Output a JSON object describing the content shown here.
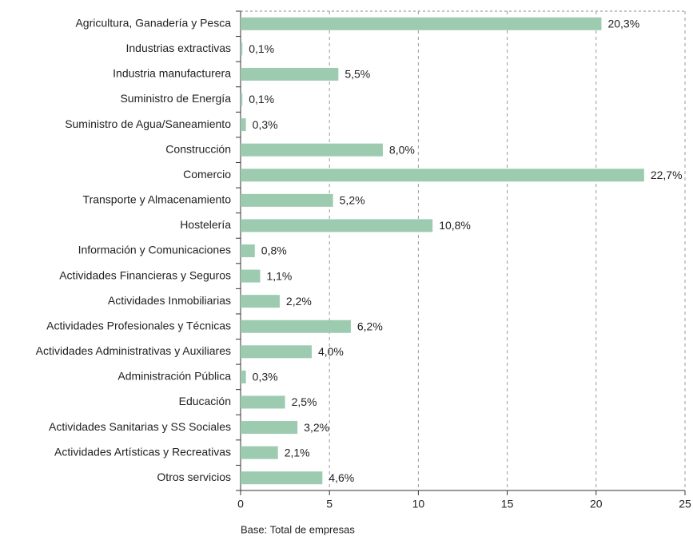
{
  "chart_data": {
    "type": "bar",
    "orientation": "horizontal",
    "categories": [
      "Agricultura, Ganadería y Pesca",
      "Industrias extractivas",
      "Industria manufacturera",
      "Suministro de Energía",
      "Suministro de Agua/Saneamiento",
      "Construcción",
      "Comercio",
      "Transporte y Almacenamiento",
      "Hostelería",
      "Información y Comunicaciones",
      "Actividades Financieras y Seguros",
      "Actividades Inmobiliarias",
      "Actividades Profesionales y Técnicas",
      "Actividades Administrativas y Auxiliares",
      "Administración Pública",
      "Educación",
      "Actividades Sanitarias y SS Sociales",
      "Actividades Artísticas y Recreativas",
      "Otros servicios"
    ],
    "values": [
      20.3,
      0.1,
      5.5,
      0.1,
      0.3,
      8.0,
      22.7,
      5.2,
      10.8,
      0.8,
      1.1,
      2.2,
      6.2,
      4.0,
      0.3,
      2.5,
      3.2,
      2.1,
      4.6
    ],
    "value_labels": [
      "20,3%",
      "0,1%",
      "5,5%",
      "0,1%",
      "0,3%",
      "8,0%",
      "22,7%",
      "5,2%",
      "10,8%",
      "0,8%",
      "1,1%",
      "2,2%",
      "6,2%",
      "4,0%",
      "0,3%",
      "2,5%",
      "3,2%",
      "2,1%",
      "4,6%"
    ],
    "color": "#9ccbb0",
    "xlim": [
      0,
      25
    ],
    "xticks": [
      0,
      5,
      10,
      15,
      20,
      25
    ],
    "grid": true,
    "annotation": "Base: Total de empresas"
  }
}
